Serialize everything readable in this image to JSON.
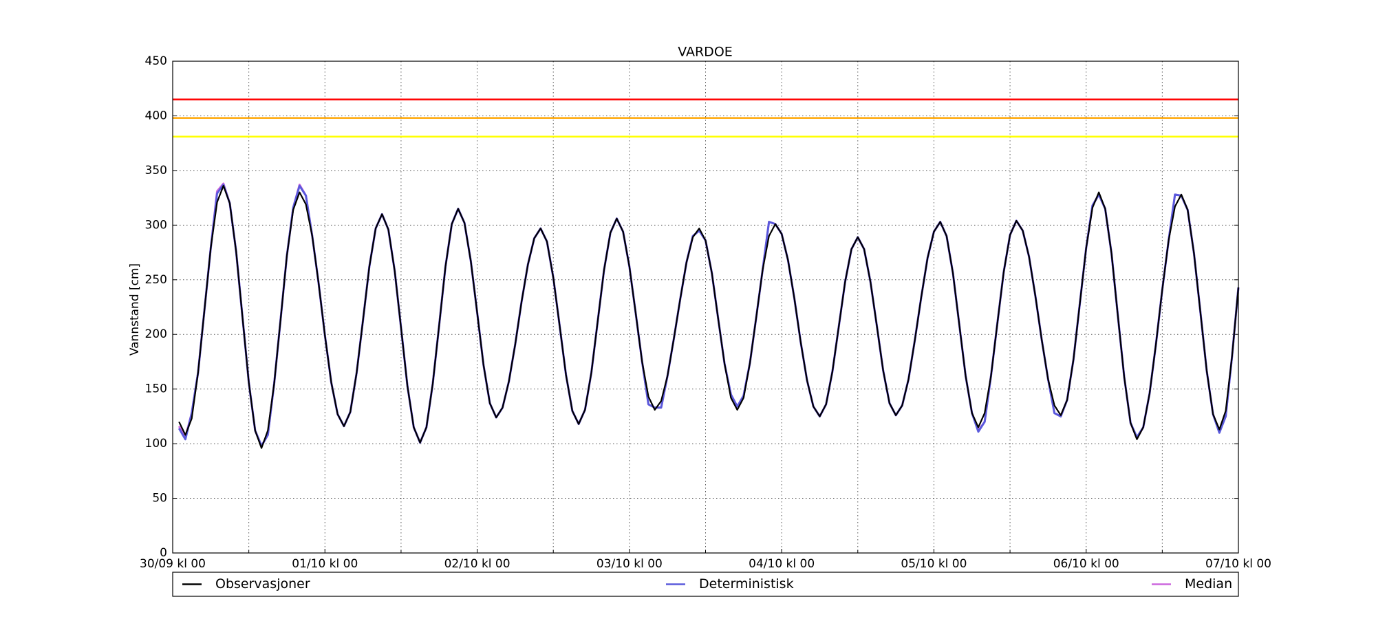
{
  "chart_data": {
    "type": "line",
    "title": "VARDOE",
    "ylabel": "Vannstand [cm]",
    "x": [
      1,
      2,
      3,
      4,
      5,
      6,
      7,
      8,
      9,
      10,
      11,
      12,
      13,
      14,
      15,
      16,
      17,
      18,
      19,
      20,
      21,
      22,
      23,
      24,
      25,
      26,
      27,
      28,
      29,
      30,
      31,
      32,
      33,
      34,
      35,
      36,
      37,
      38,
      39,
      40,
      41,
      42,
      43,
      44,
      45,
      46,
      47,
      48,
      49,
      50,
      51,
      52,
      53,
      54,
      55,
      56,
      57,
      58,
      59,
      60,
      61,
      62,
      63,
      64,
      65,
      66,
      67,
      68,
      69,
      70,
      71,
      72,
      73,
      74,
      75,
      76,
      77,
      78,
      79,
      80,
      81,
      82,
      83,
      84,
      85,
      86,
      87,
      88,
      89,
      90,
      91,
      92,
      93,
      94,
      95,
      96,
      97,
      98,
      99,
      100,
      101,
      102,
      103,
      104,
      105,
      106,
      107,
      108,
      109,
      110,
      111,
      112,
      113,
      114,
      115,
      116,
      117,
      118,
      119,
      120,
      121,
      122,
      123,
      124,
      125,
      126,
      127,
      128,
      129,
      130,
      131,
      132,
      133,
      134,
      135,
      136,
      137,
      138,
      139,
      140,
      141,
      142,
      143,
      144,
      145,
      146,
      147,
      148,
      149,
      150,
      151,
      152,
      153,
      154,
      155,
      156,
      157,
      158,
      159,
      160,
      161,
      162,
      163,
      164,
      165,
      166,
      167,
      168
    ],
    "series": [
      {
        "name": "Observasjoner",
        "color": "#000000",
        "values": [
          120,
          108,
          123,
          165,
          222,
          279,
          321,
          336,
          320,
          276,
          216,
          156,
          112,
          96,
          112,
          155,
          213,
          272,
          314,
          330,
          319,
          290,
          247,
          199,
          156,
          127,
          116,
          129,
          165,
          213,
          262,
          297,
          310,
          296,
          258,
          206,
          153,
          115,
          101,
          115,
          155,
          208,
          262,
          301,
          315,
          302,
          267,
          220,
          172,
          137,
          124,
          133,
          157,
          191,
          230,
          264,
          288,
          297,
          285,
          252,
          208,
          163,
          130,
          118,
          131,
          165,
          212,
          259,
          293,
          306,
          294,
          262,
          219,
          175,
          143,
          131,
          139,
          162,
          196,
          232,
          266,
          289,
          297,
          286,
          256,
          214,
          173,
          142,
          131,
          142,
          174,
          216,
          259,
          290,
          301,
          292,
          268,
          233,
          193,
          158,
          134,
          125,
          136,
          166,
          207,
          248,
          278,
          289,
          278,
          248,
          208,
          167,
          137,
          126,
          135,
          159,
          195,
          234,
          270,
          294,
          303,
          290,
          256,
          209,
          162,
          128,
          115,
          128,
          162,
          210,
          257,
          291,
          304,
          295,
          271,
          235,
          195,
          159,
          135,
          126,
          140,
          177,
          228,
          279,
          316,
          330,
          315,
          274,
          217,
          161,
          119,
          104,
          115,
          146,
          191,
          241,
          286,
          317,
          328,
          314,
          274,
          221,
          167,
          127,
          113,
          130,
          180,
          243
        ]
      },
      {
        "name": "Deterministisk",
        "color": "#5a5adc",
        "values": [
          114,
          104,
          128,
          165,
          222,
          279,
          329,
          337,
          320,
          276,
          216,
          156,
          112,
          98,
          108,
          155,
          213,
          272,
          316,
          336,
          327,
          290,
          247,
          199,
          156,
          127,
          116,
          129,
          165,
          213,
          262,
          297,
          310,
          296,
          258,
          206,
          153,
          115,
          101,
          115,
          155,
          208,
          262,
          301,
          315,
          302,
          267,
          220,
          172,
          137,
          124,
          133,
          157,
          191,
          230,
          264,
          288,
          297,
          285,
          252,
          208,
          163,
          130,
          118,
          131,
          165,
          212,
          259,
          293,
          306,
          294,
          262,
          219,
          175,
          136,
          133,
          133,
          162,
          196,
          232,
          266,
          290,
          295,
          286,
          256,
          214,
          173,
          145,
          134,
          144,
          174,
          216,
          259,
          303,
          301,
          292,
          268,
          233,
          193,
          158,
          134,
          125,
          136,
          166,
          207,
          248,
          278,
          289,
          278,
          248,
          208,
          167,
          137,
          126,
          135,
          159,
          195,
          234,
          270,
          294,
          303,
          290,
          256,
          209,
          162,
          128,
          111,
          120,
          162,
          210,
          257,
          291,
          304,
          295,
          271,
          235,
          195,
          159,
          128,
          125,
          140,
          177,
          228,
          279,
          318,
          328,
          315,
          274,
          217,
          161,
          119,
          106,
          115,
          146,
          191,
          241,
          286,
          328,
          327,
          314,
          274,
          221,
          167,
          127,
          110,
          125,
          180,
          243
        ]
      },
      {
        "name": "Median",
        "color": "#cc66dd",
        "values": [
          116,
          106,
          128,
          165,
          222,
          279,
          331,
          338,
          320,
          276,
          216,
          156,
          112,
          98,
          108,
          155,
          213,
          272,
          316,
          337,
          327,
          290,
          247,
          199,
          156,
          127,
          116,
          129,
          165,
          213,
          262,
          297,
          310,
          296,
          258,
          206,
          153,
          115,
          101,
          115,
          155,
          208,
          262,
          301,
          315,
          302,
          267,
          220,
          172,
          137,
          124,
          133,
          157,
          191,
          230,
          264,
          288,
          297,
          285,
          252,
          208,
          163,
          130,
          118,
          131,
          165,
          212,
          259,
          293,
          306,
          294,
          262,
          219,
          175,
          136,
          133,
          133,
          162,
          196,
          232,
          266,
          290,
          295,
          286,
          256,
          214,
          173,
          145,
          134,
          144,
          174,
          216,
          259,
          303,
          301,
          292,
          268,
          233,
          193,
          158,
          134,
          125,
          136,
          166,
          207,
          248,
          278,
          289,
          278,
          248,
          208,
          167,
          137,
          126,
          135,
          159,
          195,
          234,
          270,
          294,
          303,
          290,
          256,
          209,
          162,
          128,
          112,
          120,
          162,
          210,
          257,
          291,
          304,
          295,
          271,
          235,
          195,
          159,
          128,
          125,
          140,
          177,
          228,
          279,
          318,
          328,
          315,
          274,
          217,
          161,
          119,
          105,
          115,
          146,
          191,
          241,
          286,
          328,
          327,
          314,
          274,
          221,
          167,
          127,
          111,
          125,
          180,
          243
        ]
      }
    ],
    "hlines": [
      {
        "value": 415,
        "color": "#ff0000"
      },
      {
        "value": 398,
        "color": "#ffa500"
      },
      {
        "value": 381,
        "color": "#ffff00"
      }
    ],
    "xlim": [
      0,
      168
    ],
    "ylim": [
      0,
      450
    ],
    "xticks": [
      {
        "value": 0,
        "label": "30/09 kl 00"
      },
      {
        "value": 24,
        "label": "01/10 kl 00"
      },
      {
        "value": 48,
        "label": "02/10 kl 00"
      },
      {
        "value": 72,
        "label": "03/10 kl 00"
      },
      {
        "value": 96,
        "label": "04/10 kl 00"
      },
      {
        "value": 120,
        "label": "05/10 kl 00"
      },
      {
        "value": 144,
        "label": "06/10 kl 00"
      },
      {
        "value": 168,
        "label": "07/10 kl 00"
      }
    ],
    "xminorticks": [
      12,
      36,
      60,
      84,
      108,
      132,
      156
    ],
    "yticks": [
      0,
      50,
      100,
      150,
      200,
      250,
      300,
      350,
      400,
      450
    ],
    "grid": true,
    "legend": "below"
  }
}
